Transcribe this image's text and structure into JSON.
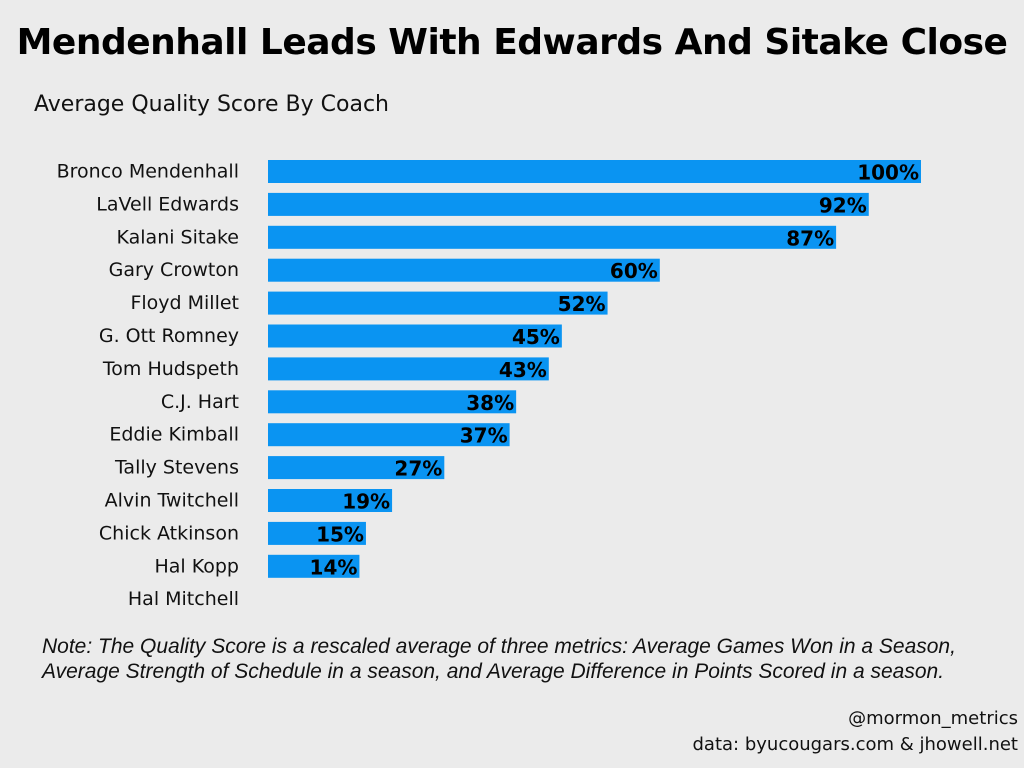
{
  "chart_data": {
    "type": "bar",
    "orientation": "horizontal",
    "title": "Mendenhall Leads With Edwards And Sitake Close",
    "subtitle": "Average Quality Score By Coach",
    "categories": [
      "Bronco Mendenhall",
      "LaVell Edwards",
      "Kalani Sitake",
      "Gary Crowton",
      "Floyd Millet",
      "G. Ott Romney",
      "Tom Hudspeth",
      "C.J. Hart",
      "Eddie Kimball",
      "Tally Stevens",
      "Alvin Twitchell",
      "Chick Atkinson",
      "Hal Kopp",
      "Hal Mitchell"
    ],
    "values": [
      100,
      92,
      87,
      60,
      52,
      45,
      43,
      38,
      37,
      27,
      19,
      15,
      14,
      null
    ],
    "value_labels": [
      "100%",
      "92%",
      "87%",
      "60%",
      "52%",
      "45%",
      "43%",
      "38%",
      "37%",
      "27%",
      "19%",
      "15%",
      "14%",
      ""
    ],
    "xlim": [
      0,
      100
    ],
    "xlabel": "",
    "ylabel": "",
    "grid": false,
    "legend": "none",
    "bar_color": "#0a94f2"
  },
  "note": "Note: The Quality Score is a rescaled average of three metrics: Average Games Won in a Season, Average Strength of Schedule in a season, and Average Difference in Points Scored in a season.",
  "credit": {
    "handle": "@mormon_metrics",
    "source": "data: byucougars.com & jhowell.net"
  },
  "colors": {
    "background": "#ebebeb",
    "bar": "#0a94f2",
    "text": "#000000"
  }
}
